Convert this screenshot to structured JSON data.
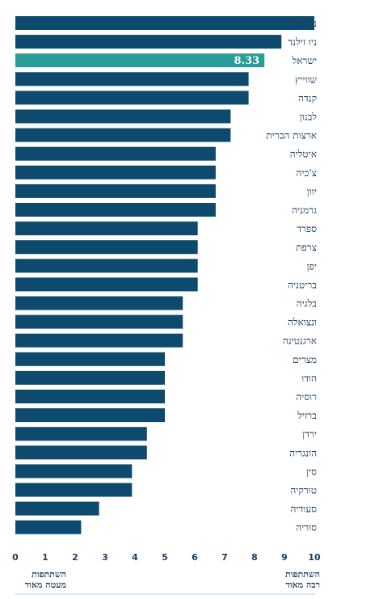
{
  "chart_data": {
    "type": "bar",
    "orientation": "horizontal",
    "categories": [
      "נורווגיה",
      "ניו זילנד",
      "ישראל",
      "שווייץ",
      "קנדה",
      "לבנון",
      "ארצות הברית",
      "איטליה",
      "צ'כיה",
      "יוון",
      "גרמניה",
      "ספרד",
      "צרפת",
      "יפן",
      "בריטניה",
      "בלגיה",
      "ונצואלה",
      "ארגנטינה",
      "מצרים",
      "הודו",
      "רוסיה",
      "ברזיל",
      "ירדן",
      "הונגריה",
      "סין",
      "טורקיה",
      "סעודיה",
      "סוריה"
    ],
    "values": [
      10,
      8.9,
      8.33,
      7.8,
      7.8,
      7.2,
      7.2,
      6.7,
      6.7,
      6.7,
      6.7,
      6.1,
      6.1,
      6.1,
      6.1,
      5.6,
      5.6,
      5.6,
      5.0,
      5.0,
      5.0,
      5.0,
      4.4,
      4.4,
      3.9,
      3.9,
      2.8,
      2.2
    ],
    "highlight_category": "ישראל",
    "highlight_value_label": "8.33",
    "xlim": [
      0,
      10
    ],
    "xticks": [
      0,
      1,
      2,
      3,
      4,
      5,
      6,
      7,
      8,
      9,
      10
    ],
    "bar_color": "#0e4a6e",
    "highlight_color": "#2a9d96",
    "text_color": "#1a3d5c",
    "low_label_line1": "השתתפות",
    "low_label_line2": "מעטה מאוד",
    "high_label_line1": "השתתפות",
    "high_label_line2": "רבה מאוד"
  }
}
